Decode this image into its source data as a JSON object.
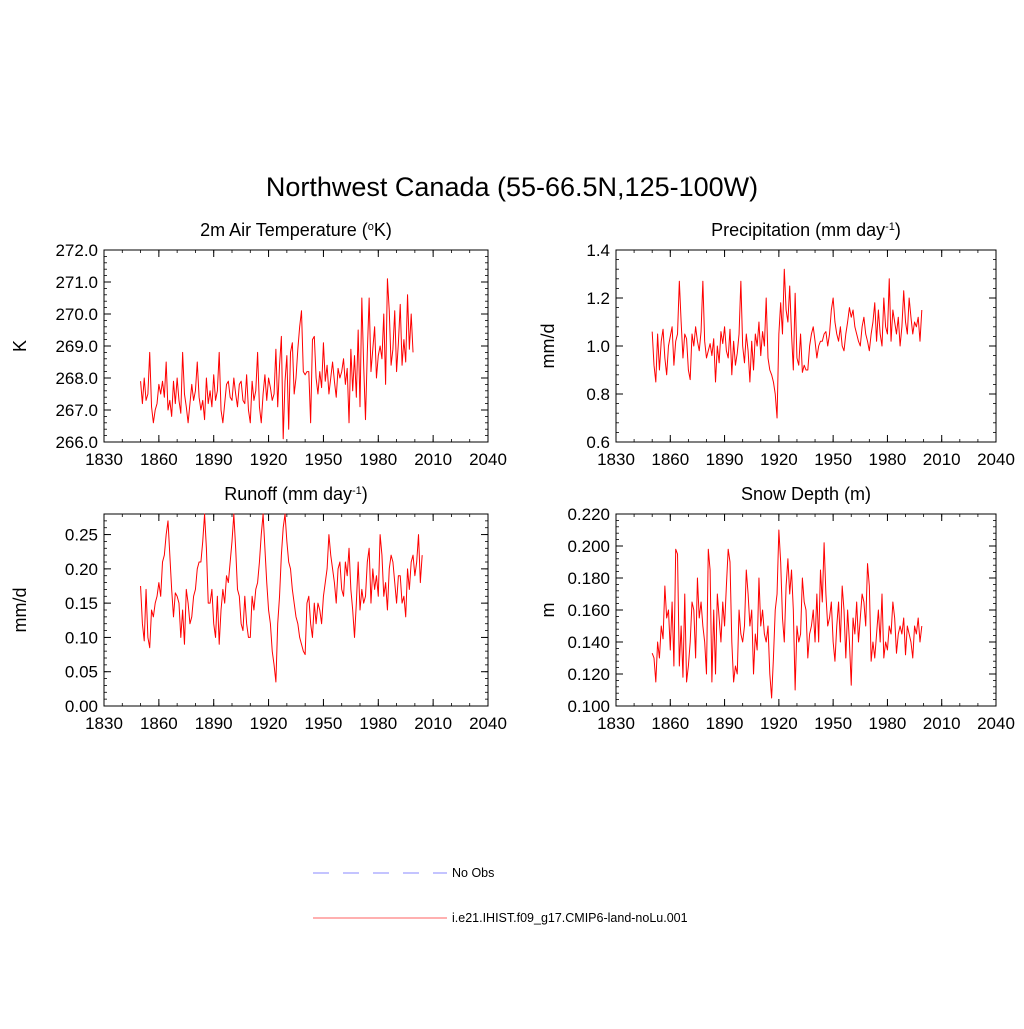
{
  "title": "Northwest Canada (55-66.5N,125-100W)",
  "legend": [
    {
      "label": "No Obs",
      "color": "#a0a0ff",
      "dash": true
    },
    {
      "label": "i.e21.IHIST.f09_g17.CMIP6-land-noLu.001",
      "color": "#ff8080",
      "dash": false
    }
  ],
  "chart_data": [
    {
      "type": "line",
      "title": "2m Air Temperature (",
      "title_sup": "o",
      "title_tail": "K)",
      "ylabel": "K",
      "xlim": [
        1830,
        2040
      ],
      "ylim": [
        266.0,
        272.0
      ],
      "xticks": [
        1830,
        1860,
        1890,
        1920,
        1950,
        1980,
        2010,
        2040
      ],
      "xtick_labels": [
        "1830",
        "1860",
        "1890",
        "1920",
        "1950",
        "1980",
        "2010",
        "2040"
      ],
      "yticks": [
        266,
        267,
        268,
        269,
        270,
        271,
        272
      ],
      "ytick_labels": [
        "266.0",
        "267.0",
        "268.0",
        "269.0",
        "270.0",
        "271.0",
        "272.0"
      ],
      "series": [
        {
          "color": "#ff0000",
          "x_start": 1850,
          "values": [
            267.9,
            267.2,
            268.0,
            267.3,
            267.5,
            268.8,
            267.1,
            266.6,
            267.0,
            267.2,
            267.8,
            267.5,
            267.9,
            267.4,
            268.5,
            267.0,
            267.3,
            266.8,
            267.9,
            267.2,
            268.0,
            267.3,
            266.9,
            268.8,
            267.5,
            267.1,
            266.6,
            267.2,
            267.8,
            267.3,
            267.6,
            268.5,
            267.4,
            267.0,
            267.3,
            266.7,
            268.0,
            267.2,
            267.6,
            267.1,
            268.1,
            267.3,
            267.6,
            268.8,
            267.0,
            266.6,
            267.2,
            267.8,
            267.9,
            267.4,
            267.3,
            268.0,
            267.5,
            267.1,
            267.8,
            267.9,
            267.3,
            267.2,
            268.1,
            267.0,
            266.6,
            267.9,
            267.3,
            267.6,
            268.8,
            267.1,
            266.6,
            267.5,
            268.1,
            267.3,
            268.0,
            267.7,
            267.3,
            267.5,
            268.9,
            267.1,
            268.4,
            269.3,
            266.1,
            267.9,
            268.7,
            266.4,
            268.8,
            269.1,
            267.5,
            268.0,
            268.9,
            269.6,
            270.1,
            268.2,
            268.1,
            268.2,
            268.2,
            266.6,
            269.2,
            269.3,
            268.0,
            267.5,
            268.2,
            267.7,
            269.1,
            267.9,
            268.4,
            267.5,
            268.0,
            268.5,
            267.9,
            267.4,
            268.3,
            268.0,
            268.2,
            268.6,
            267.8,
            268.3,
            266.6,
            268.9,
            267.6,
            268.7,
            267.4,
            269.5,
            267.1,
            270.5,
            268.4,
            266.7,
            268.8,
            270.5,
            268.2,
            268.9,
            269.6,
            268.0,
            268.7,
            269.0,
            268.6,
            270.0,
            267.8,
            271.1,
            270.1,
            268.4,
            268.9,
            270.1,
            268.2,
            269.1,
            270.3,
            268.4,
            269.2,
            268.5,
            270.6,
            268.9,
            270.0,
            268.8
          ]
        }
      ]
    },
    {
      "type": "line",
      "title": "Precipitation (mm day",
      "title_sup": "-1",
      "title_tail": ")",
      "ylabel": "mm/d",
      "xlim": [
        1830,
        2040
      ],
      "ylim": [
        0.6,
        1.4
      ],
      "xticks": [
        1830,
        1860,
        1890,
        1920,
        1950,
        1980,
        2010,
        2040
      ],
      "xtick_labels": [
        "1830",
        "1860",
        "1890",
        "1920",
        "1950",
        "1980",
        "2010",
        "2040"
      ],
      "yticks": [
        0.6,
        0.8,
        1.0,
        1.2,
        1.4
      ],
      "ytick_labels": [
        "0.6",
        "0.8",
        "1.0",
        "1.2",
        "1.4"
      ],
      "series": [
        {
          "color": "#ff0000",
          "x_start": 1850,
          "values": [
            1.06,
            0.92,
            0.85,
            1.05,
            0.9,
            1.02,
            1.07,
            0.95,
            0.88,
            1.0,
            1.04,
            1.08,
            0.92,
            1.02,
            1.05,
            1.27,
            1.1,
            0.95,
            1.05,
            1.03,
            0.9,
            0.86,
            1.05,
            1.0,
            1.08,
            1.02,
            0.98,
            1.06,
            1.27,
            1.02,
            0.95,
            0.98,
            1.01,
            0.96,
            1.03,
            0.85,
            1.0,
            0.93,
            1.06,
            1.01,
            1.08,
            0.98,
            0.95,
            1.07,
            0.88,
            1.02,
            0.92,
            0.97,
            1.05,
            1.27,
            1.0,
            0.93,
            1.05,
            0.98,
            0.85,
            1.02,
            0.9,
            1.05,
            1.0,
            1.1,
            0.96,
            1.06,
            1.0,
            1.2,
            0.95,
            0.9,
            0.88,
            0.85,
            0.8,
            0.7,
            1.05,
            1.18,
            1.05,
            1.32,
            1.15,
            1.1,
            1.25,
            1.05,
            0.9,
            1.22,
            0.95,
            0.92,
            1.05,
            0.89,
            0.92,
            0.9,
            0.9,
            1.0,
            1.05,
            1.08,
            1.02,
            0.95,
            1.0,
            1.02,
            1.02,
            1.05,
            1.06,
            1.0,
            1.05,
            1.15,
            1.2,
            1.1,
            1.05,
            1.02,
            1.08,
            1.0,
            0.98,
            1.05,
            1.1,
            1.16,
            1.12,
            1.15,
            1.08,
            1.05,
            1.02,
            1.0,
            1.08,
            1.12,
            1.05,
            1.02,
            0.98,
            1.05,
            1.1,
            1.18,
            1.02,
            1.15,
            1.05,
            1.0,
            1.2,
            1.08,
            1.05,
            1.28,
            1.02,
            1.15,
            1.1,
            1.05,
            1.12,
            1.0,
            1.08,
            1.23,
            1.1,
            1.05,
            1.2,
            1.12,
            1.05,
            1.1,
            1.08,
            1.12,
            1.02,
            1.15
          ]
        }
      ]
    },
    {
      "type": "line",
      "title": "Runoff (mm day",
      "title_sup": "-1",
      "title_tail": ")",
      "ylabel": "mm/d",
      "xlim": [
        1830,
        2040
      ],
      "ylim": [
        0.0,
        0.28
      ],
      "xticks": [
        1830,
        1860,
        1890,
        1920,
        1950,
        1980,
        2010,
        2040
      ],
      "xtick_labels": [
        "1830",
        "1860",
        "1890",
        "1920",
        "1950",
        "1980",
        "2010",
        "2040"
      ],
      "yticks": [
        0,
        0.05,
        0.1,
        0.15,
        0.2,
        0.25
      ],
      "ytick_labels": [
        "0.00",
        "0.05",
        "0.10",
        "0.15",
        "0.20",
        "0.25"
      ],
      "series": [
        {
          "color": "#ff0000",
          "x_start": 1850,
          "values": [
            0.175,
            0.12,
            0.095,
            0.17,
            0.1,
            0.085,
            0.14,
            0.13,
            0.15,
            0.16,
            0.18,
            0.16,
            0.21,
            0.22,
            0.25,
            0.27,
            0.22,
            0.17,
            0.13,
            0.165,
            0.16,
            0.15,
            0.1,
            0.14,
            0.09,
            0.17,
            0.15,
            0.12,
            0.13,
            0.16,
            0.17,
            0.2,
            0.21,
            0.21,
            0.24,
            0.28,
            0.23,
            0.15,
            0.15,
            0.17,
            0.12,
            0.1,
            0.16,
            0.09,
            0.14,
            0.17,
            0.15,
            0.19,
            0.18,
            0.21,
            0.24,
            0.28,
            0.23,
            0.17,
            0.16,
            0.12,
            0.11,
            0.16,
            0.12,
            0.1,
            0.1,
            0.16,
            0.14,
            0.17,
            0.18,
            0.21,
            0.25,
            0.28,
            0.23,
            0.18,
            0.14,
            0.12,
            0.08,
            0.06,
            0.035,
            0.12,
            0.16,
            0.22,
            0.26,
            0.28,
            0.24,
            0.21,
            0.2,
            0.17,
            0.15,
            0.13,
            0.12,
            0.1,
            0.09,
            0.08,
            0.075,
            0.15,
            0.16,
            0.12,
            0.1,
            0.15,
            0.12,
            0.15,
            0.14,
            0.12,
            0.16,
            0.18,
            0.2,
            0.25,
            0.22,
            0.2,
            0.18,
            0.15,
            0.2,
            0.21,
            0.17,
            0.16,
            0.21,
            0.19,
            0.23,
            0.17,
            0.14,
            0.1,
            0.15,
            0.21,
            0.14,
            0.17,
            0.15,
            0.16,
            0.21,
            0.23,
            0.15,
            0.2,
            0.17,
            0.19,
            0.16,
            0.25,
            0.22,
            0.16,
            0.18,
            0.14,
            0.2,
            0.22,
            0.21,
            0.18,
            0.15,
            0.19,
            0.19,
            0.15,
            0.16,
            0.13,
            0.2,
            0.17,
            0.21,
            0.22,
            0.19,
            0.21,
            0.25,
            0.18,
            0.22
          ]
        }
      ]
    },
    {
      "type": "line",
      "title": "Snow Depth (m)",
      "title_sup": "",
      "title_tail": "",
      "ylabel": "m",
      "xlim": [
        1830,
        2040
      ],
      "ylim": [
        0.1,
        0.22
      ],
      "xticks": [
        1830,
        1860,
        1890,
        1920,
        1950,
        1980,
        2010,
        2040
      ],
      "xtick_labels": [
        "1830",
        "1860",
        "1890",
        "1920",
        "1950",
        "1980",
        "2010",
        "2040"
      ],
      "yticks": [
        0.1,
        0.12,
        0.14,
        0.16,
        0.18,
        0.2,
        0.22
      ],
      "ytick_labels": [
        "0.100",
        "0.120",
        "0.140",
        "0.160",
        "0.180",
        "0.200",
        "0.220"
      ],
      "series": [
        {
          "color": "#ff0000",
          "x_start": 1850,
          "values": [
            0.133,
            0.13,
            0.115,
            0.14,
            0.13,
            0.15,
            0.142,
            0.175,
            0.155,
            0.16,
            0.135,
            0.165,
            0.125,
            0.198,
            0.195,
            0.125,
            0.15,
            0.118,
            0.17,
            0.115,
            0.125,
            0.14,
            0.165,
            0.16,
            0.13,
            0.18,
            0.155,
            0.165,
            0.15,
            0.14,
            0.12,
            0.198,
            0.185,
            0.115,
            0.16,
            0.12,
            0.17,
            0.155,
            0.14,
            0.165,
            0.15,
            0.175,
            0.198,
            0.19,
            0.14,
            0.115,
            0.125,
            0.12,
            0.16,
            0.145,
            0.14,
            0.15,
            0.185,
            0.17,
            0.15,
            0.16,
            0.12,
            0.145,
            0.135,
            0.18,
            0.15,
            0.16,
            0.145,
            0.14,
            0.15,
            0.12,
            0.105,
            0.13,
            0.16,
            0.17,
            0.21,
            0.19,
            0.155,
            0.14,
            0.175,
            0.192,
            0.17,
            0.185,
            0.16,
            0.11,
            0.15,
            0.14,
            0.145,
            0.18,
            0.165,
            0.16,
            0.13,
            0.145,
            0.15,
            0.16,
            0.14,
            0.17,
            0.14,
            0.185,
            0.165,
            0.202,
            0.17,
            0.15,
            0.155,
            0.165,
            0.14,
            0.128,
            0.15,
            0.165,
            0.14,
            0.175,
            0.16,
            0.13,
            0.16,
            0.14,
            0.113,
            0.155,
            0.145,
            0.165,
            0.14,
            0.155,
            0.17,
            0.165,
            0.15,
            0.189,
            0.175,
            0.128,
            0.14,
            0.13,
            0.145,
            0.16,
            0.14,
            0.17,
            0.13,
            0.14,
            0.135,
            0.15,
            0.145,
            0.165,
            0.155,
            0.133,
            0.145,
            0.15,
            0.145,
            0.155,
            0.132,
            0.15,
            0.145,
            0.14,
            0.13,
            0.15,
            0.145,
            0.155,
            0.14,
            0.15
          ]
        }
      ]
    }
  ]
}
